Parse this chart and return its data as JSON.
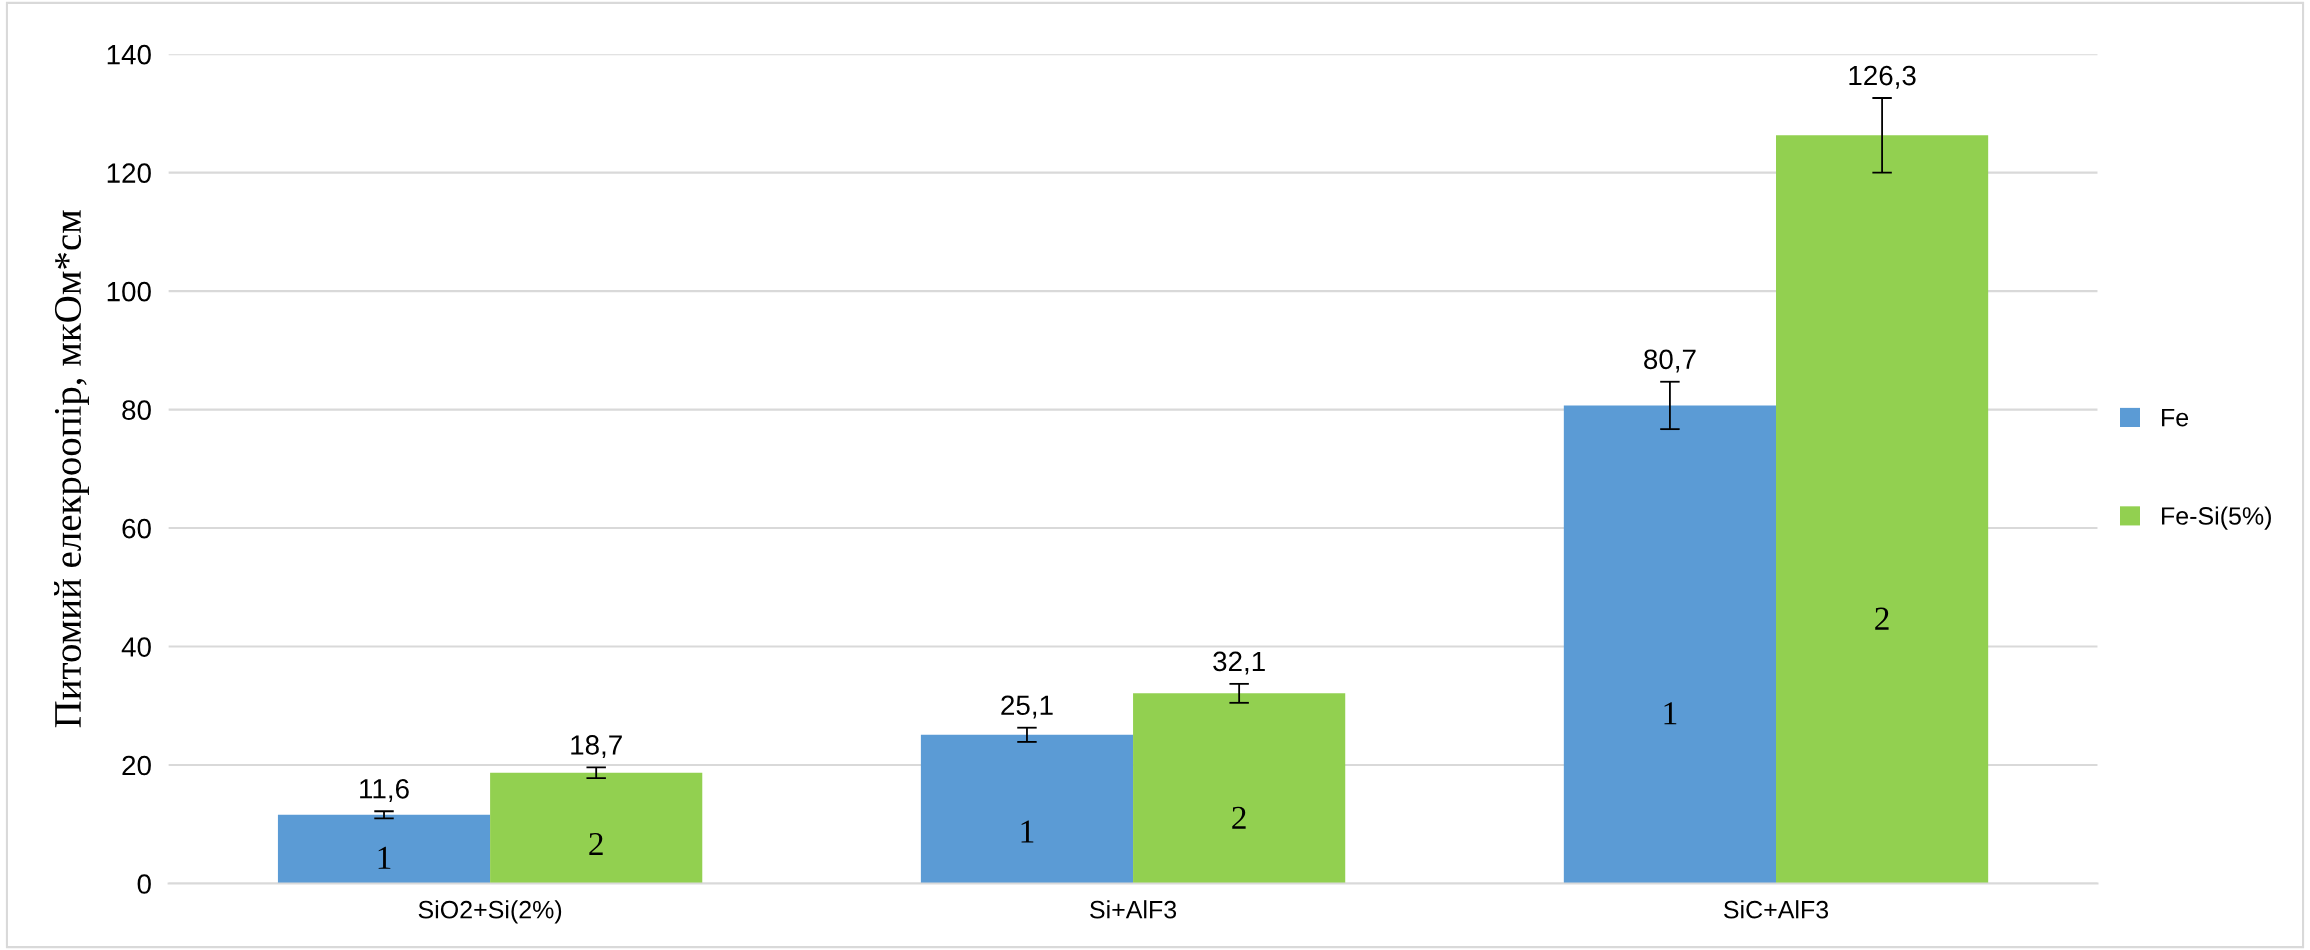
{
  "chart_data": {
    "type": "bar",
    "ylabel": "Питомий елекроопір, мкОм*см",
    "categories": [
      "SiO2+Si(2%)",
      "Si+AlF3",
      "SiC+AlF3"
    ],
    "series": [
      {
        "name": "Fe",
        "color": "#5b9bd5",
        "values": [
          11.6,
          25.1,
          80.7
        ],
        "errors": [
          0.6,
          1.2,
          4.0
        ],
        "value_labels": [
          "11,6",
          "25,1",
          "80,7"
        ]
      },
      {
        "name": "Fe-Si(5%)",
        "color": "#92d050",
        "values": [
          18.7,
          32.1,
          126.3
        ],
        "errors": [
          0.9,
          1.6,
          6.3
        ],
        "value_labels": [
          "18,7",
          "32,1",
          "126,3"
        ]
      }
    ],
    "annotations": [
      "1",
      "2",
      "1",
      "2",
      "1",
      "2"
    ],
    "ylim": [
      0,
      140
    ],
    "yticks": [
      0,
      20,
      40,
      60,
      80,
      100,
      120,
      140
    ],
    "grid": "y",
    "legend": "right"
  }
}
